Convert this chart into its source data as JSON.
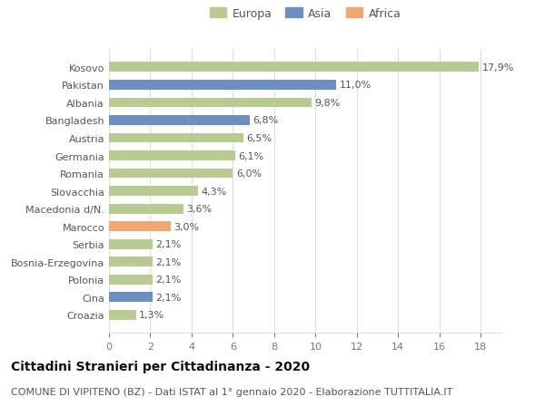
{
  "categories": [
    "Croazia",
    "Cina",
    "Polonia",
    "Bosnia-Erzegovina",
    "Serbia",
    "Marocco",
    "Macedonia d/N.",
    "Slovacchia",
    "Romania",
    "Germania",
    "Austria",
    "Bangladesh",
    "Albania",
    "Pakistan",
    "Kosovo"
  ],
  "values": [
    1.3,
    2.1,
    2.1,
    2.1,
    2.1,
    3.0,
    3.6,
    4.3,
    6.0,
    6.1,
    6.5,
    6.8,
    9.8,
    11.0,
    17.9
  ],
  "labels": [
    "1,3%",
    "2,1%",
    "2,1%",
    "2,1%",
    "2,1%",
    "3,0%",
    "3,6%",
    "4,3%",
    "6,0%",
    "6,1%",
    "6,5%",
    "6,8%",
    "9,8%",
    "11,0%",
    "17,9%"
  ],
  "colors": [
    "#b5cb8f",
    "#6b8fc2",
    "#b5cb8f",
    "#b5cb8f",
    "#b5cb8f",
    "#f0a870",
    "#b5cb8f",
    "#b5cb8f",
    "#b5cb8f",
    "#b5cb8f",
    "#b5cb8f",
    "#6b8fc2",
    "#b5cb8f",
    "#6b8fc2",
    "#b5cb8f"
  ],
  "legend_colors": {
    "Europa": "#b5cb8f",
    "Asia": "#6b8fc2",
    "Africa": "#f0a870"
  },
  "xlim": [
    0,
    19
  ],
  "xticks": [
    0,
    2,
    4,
    6,
    8,
    10,
    12,
    14,
    16,
    18
  ],
  "title": "Cittadini Stranieri per Cittadinanza - 2020",
  "subtitle": "COMUNE DI VIPITENO (BZ) - Dati ISTAT al 1° gennaio 2020 - Elaborazione TUTTITALIA.IT",
  "title_fontsize": 10,
  "subtitle_fontsize": 8,
  "label_fontsize": 8,
  "tick_fontsize": 8,
  "bar_height": 0.55,
  "background_color": "#ffffff",
  "grid_color": "#dddddd"
}
